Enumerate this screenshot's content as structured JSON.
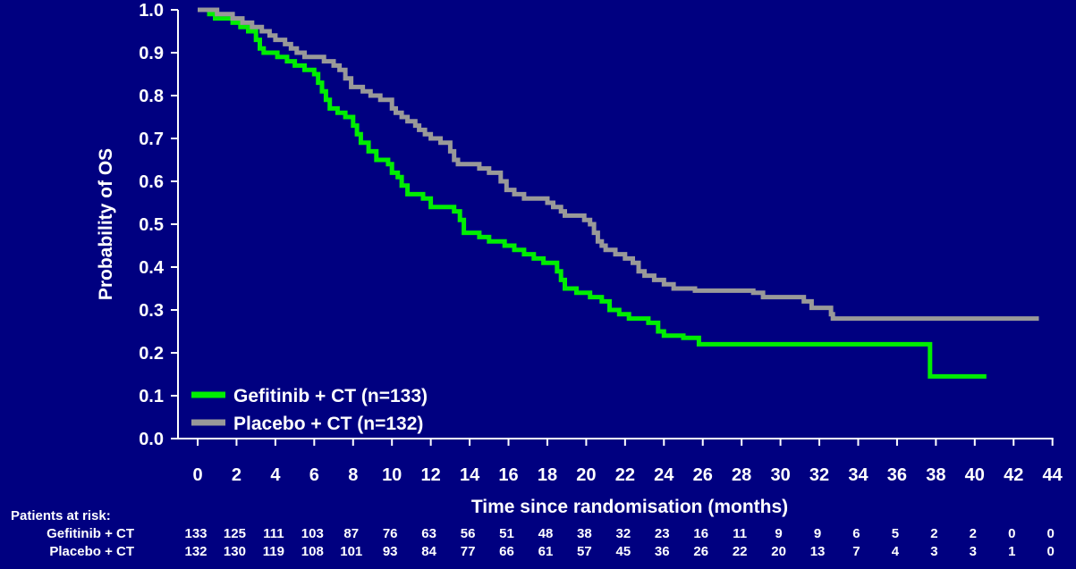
{
  "chart_data": {
    "type": "line",
    "title": "",
    "xlabel": "Time since randomisation (months)",
    "ylabel": "Probability of OS",
    "xlim": [
      0,
      44
    ],
    "ylim": [
      0.0,
      1.0
    ],
    "x_ticks": [
      0,
      2,
      4,
      6,
      8,
      10,
      12,
      14,
      16,
      18,
      20,
      22,
      24,
      26,
      28,
      30,
      32,
      34,
      36,
      38,
      40,
      42,
      44
    ],
    "y_ticks": [
      "0.0",
      "0.1",
      "0.2",
      "0.3",
      "0.4",
      "0.5",
      "0.6",
      "0.7",
      "0.8",
      "0.9",
      "1.0"
    ],
    "grid": false,
    "legend_position": "bottom-left",
    "series": [
      {
        "name": "Gefitinib + CT (n=133)",
        "color": "#00ee00",
        "points": [
          [
            0,
            1.0
          ],
          [
            0.6,
            0.99
          ],
          [
            0.9,
            0.98
          ],
          [
            1.8,
            0.97
          ],
          [
            2.2,
            0.96
          ],
          [
            2.6,
            0.95
          ],
          [
            3.0,
            0.93
          ],
          [
            3.2,
            0.91
          ],
          [
            3.4,
            0.9
          ],
          [
            4.1,
            0.89
          ],
          [
            4.6,
            0.88
          ],
          [
            5.0,
            0.87
          ],
          [
            5.5,
            0.86
          ],
          [
            6.0,
            0.85
          ],
          [
            6.2,
            0.83
          ],
          [
            6.4,
            0.81
          ],
          [
            6.6,
            0.79
          ],
          [
            6.8,
            0.77
          ],
          [
            7.2,
            0.76
          ],
          [
            7.6,
            0.75
          ],
          [
            8.0,
            0.73
          ],
          [
            8.2,
            0.71
          ],
          [
            8.4,
            0.69
          ],
          [
            8.8,
            0.67
          ],
          [
            9.2,
            0.65
          ],
          [
            9.8,
            0.64
          ],
          [
            10.0,
            0.62
          ],
          [
            10.3,
            0.61
          ],
          [
            10.5,
            0.59
          ],
          [
            10.8,
            0.57
          ],
          [
            11.6,
            0.56
          ],
          [
            12.0,
            0.54
          ],
          [
            13.2,
            0.53
          ],
          [
            13.5,
            0.51
          ],
          [
            13.7,
            0.48
          ],
          [
            14.5,
            0.47
          ],
          [
            15.0,
            0.46
          ],
          [
            15.8,
            0.45
          ],
          [
            16.3,
            0.44
          ],
          [
            16.8,
            0.43
          ],
          [
            17.3,
            0.42
          ],
          [
            17.8,
            0.41
          ],
          [
            18.5,
            0.39
          ],
          [
            18.7,
            0.37
          ],
          [
            18.9,
            0.35
          ],
          [
            19.5,
            0.34
          ],
          [
            20.2,
            0.33
          ],
          [
            20.8,
            0.32
          ],
          [
            21.2,
            0.3
          ],
          [
            21.7,
            0.29
          ],
          [
            22.2,
            0.28
          ],
          [
            23.2,
            0.27
          ],
          [
            23.7,
            0.25
          ],
          [
            24.0,
            0.24
          ],
          [
            25.0,
            0.235
          ],
          [
            25.8,
            0.22
          ],
          [
            37.7,
            0.22
          ],
          [
            37.7,
            0.145
          ],
          [
            40.6,
            0.145
          ]
        ]
      },
      {
        "name": "Placebo + CT (n=132)",
        "color": "#999999",
        "points": [
          [
            0,
            1.0
          ],
          [
            1.0,
            0.99
          ],
          [
            1.8,
            0.98
          ],
          [
            2.3,
            0.97
          ],
          [
            2.8,
            0.96
          ],
          [
            3.3,
            0.95
          ],
          [
            3.7,
            0.94
          ],
          [
            4.0,
            0.93
          ],
          [
            4.5,
            0.92
          ],
          [
            4.8,
            0.91
          ],
          [
            5.1,
            0.9
          ],
          [
            5.5,
            0.89
          ],
          [
            6.5,
            0.88
          ],
          [
            7.0,
            0.87
          ],
          [
            7.3,
            0.86
          ],
          [
            7.6,
            0.84
          ],
          [
            7.9,
            0.82
          ],
          [
            8.5,
            0.81
          ],
          [
            8.9,
            0.8
          ],
          [
            9.4,
            0.79
          ],
          [
            10.0,
            0.77
          ],
          [
            10.2,
            0.76
          ],
          [
            10.5,
            0.75
          ],
          [
            10.8,
            0.74
          ],
          [
            11.2,
            0.73
          ],
          [
            11.4,
            0.72
          ],
          [
            11.7,
            0.71
          ],
          [
            12.0,
            0.7
          ],
          [
            12.5,
            0.69
          ],
          [
            13.0,
            0.67
          ],
          [
            13.2,
            0.65
          ],
          [
            13.4,
            0.64
          ],
          [
            14.5,
            0.63
          ],
          [
            15.0,
            0.62
          ],
          [
            15.6,
            0.6
          ],
          [
            15.9,
            0.58
          ],
          [
            16.3,
            0.57
          ],
          [
            16.8,
            0.56
          ],
          [
            18.0,
            0.55
          ],
          [
            18.3,
            0.54
          ],
          [
            18.7,
            0.53
          ],
          [
            18.9,
            0.52
          ],
          [
            19.9,
            0.51
          ],
          [
            20.2,
            0.5
          ],
          [
            20.4,
            0.48
          ],
          [
            20.6,
            0.46
          ],
          [
            20.8,
            0.45
          ],
          [
            21.0,
            0.44
          ],
          [
            21.5,
            0.43
          ],
          [
            22.0,
            0.42
          ],
          [
            22.4,
            0.41
          ],
          [
            22.7,
            0.39
          ],
          [
            23.0,
            0.38
          ],
          [
            23.5,
            0.37
          ],
          [
            24.0,
            0.36
          ],
          [
            24.5,
            0.35
          ],
          [
            25.6,
            0.345
          ],
          [
            28.6,
            0.34
          ],
          [
            29.1,
            0.33
          ],
          [
            31.2,
            0.32
          ],
          [
            31.6,
            0.305
          ],
          [
            32.6,
            0.29
          ],
          [
            32.7,
            0.28
          ],
          [
            43.3,
            0.28
          ]
        ]
      }
    ],
    "risk_table": {
      "title": "Patients at risk:",
      "times": [
        0,
        2,
        4,
        6,
        8,
        10,
        12,
        14,
        16,
        18,
        20,
        22,
        24,
        26,
        28,
        30,
        32,
        34,
        36,
        38,
        40,
        42,
        44
      ],
      "rows": [
        {
          "label": "Gefitinib + CT",
          "values": [
            "133",
            "125",
            "111",
            "103",
            "87",
            "76",
            "63",
            "56",
            "51",
            "48",
            "38",
            "32",
            "23",
            "16",
            "11",
            "9",
            "9",
            "6",
            "5",
            "2",
            "2",
            "0",
            "0"
          ]
        },
        {
          "label": "Placebo + CT",
          "values": [
            "132",
            "130",
            "119",
            "108",
            "101",
            "93",
            "84",
            "77",
            "66",
            "61",
            "57",
            "45",
            "36",
            "26",
            "22",
            "20",
            "13",
            "7",
            "4",
            "3",
            "3",
            "1",
            "0"
          ]
        }
      ]
    }
  }
}
